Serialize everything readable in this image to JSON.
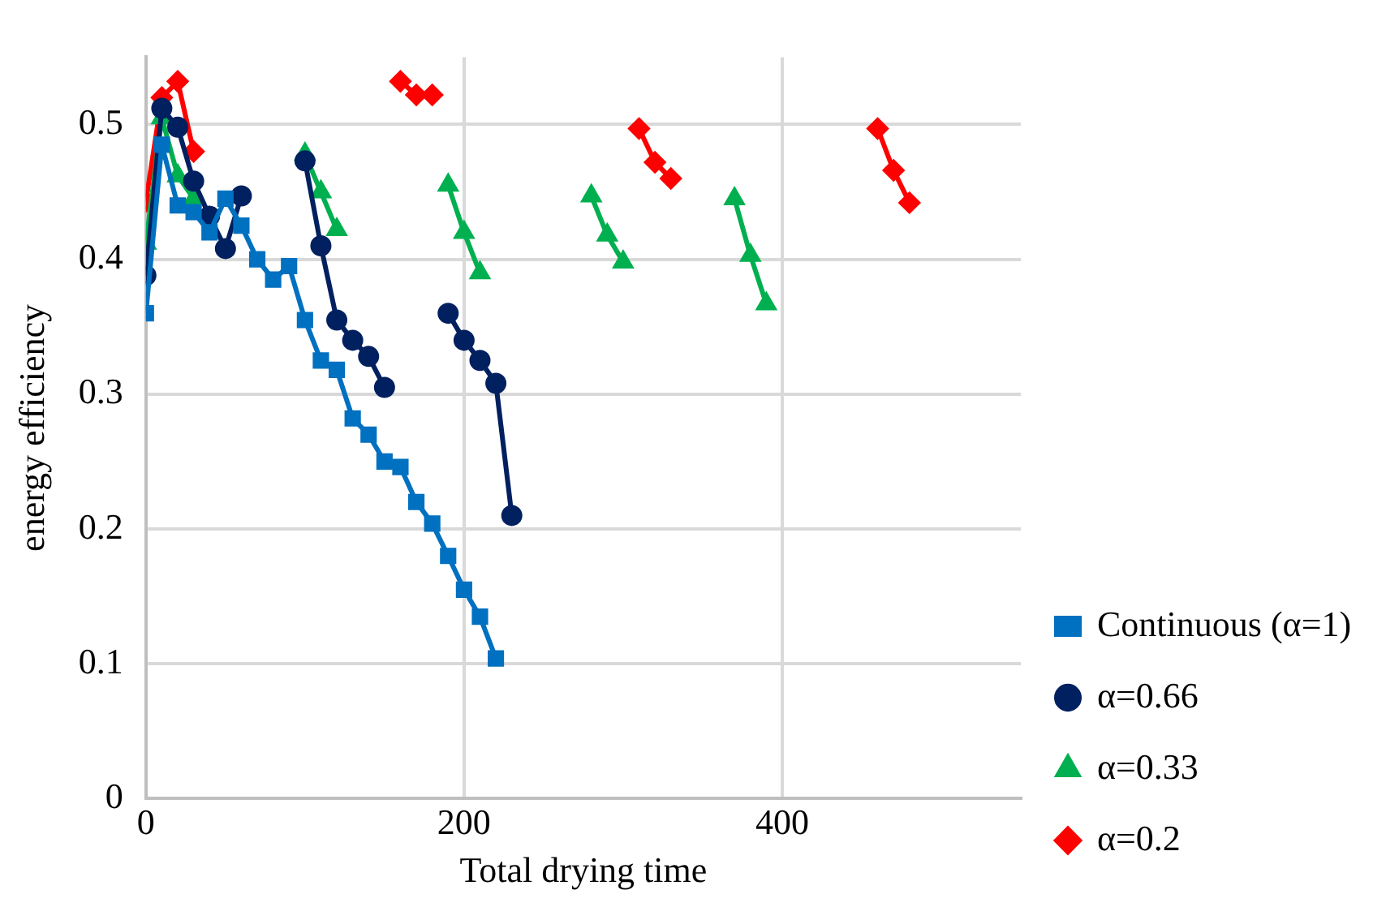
{
  "chart_data": {
    "type": "line",
    "xlabel": "Total drying time",
    "ylabel": "energy efficiency",
    "xlim": [
      0,
      550
    ],
    "xticks": [
      0,
      200,
      400
    ],
    "ylim": [
      0,
      0.55
    ],
    "yticks": [
      0,
      0.1,
      0.2,
      0.3,
      0.4,
      0.5
    ],
    "grid": true,
    "legend": "right",
    "line_style": "solid",
    "series": [
      {
        "name": "Continuous (α=1)",
        "color": "#0070c0",
        "marker": "square",
        "x": [
          0,
          10,
          20,
          30,
          40,
          50,
          60,
          70,
          80,
          90,
          100,
          110,
          120,
          130,
          140,
          150,
          160,
          170,
          180,
          190,
          200,
          210,
          220
        ],
        "values": [
          0.36,
          0.485,
          0.44,
          0.435,
          0.42,
          0.445,
          0.425,
          0.4,
          0.385,
          0.395,
          0.355,
          0.325,
          0.318,
          0.282,
          0.27,
          0.25,
          0.246,
          0.22,
          0.204,
          0.18,
          0.155,
          0.135,
          0.104
        ]
      },
      {
        "name": "α=0.66",
        "color": "#002060",
        "marker": "circle",
        "x": [
          0,
          10,
          20,
          30,
          40,
          50,
          60,
          80,
          100,
          110,
          120,
          130,
          140,
          150,
          170,
          190,
          200,
          210,
          220,
          230
        ],
        "values": [
          0.388,
          0.512,
          0.498,
          0.458,
          0.432,
          0.408,
          0.447,
          null,
          0.473,
          0.41,
          0.355,
          0.34,
          0.328,
          0.305,
          null,
          0.36,
          0.34,
          0.325,
          0.308,
          0.21
        ]
      },
      {
        "name": "α=0.33",
        "color": "#00b050",
        "marker": "triangle",
        "x": [
          0,
          10,
          20,
          30,
          60,
          100,
          110,
          120,
          150,
          190,
          200,
          210,
          250,
          280,
          290,
          300,
          340,
          370,
          380,
          390
        ],
        "values": [
          0.412,
          0.505,
          0.462,
          0.445,
          null,
          0.478,
          0.45,
          0.422,
          null,
          0.455,
          0.42,
          0.39,
          null,
          0.447,
          0.418,
          0.398,
          null,
          0.445,
          0.403,
          0.367
        ]
      },
      {
        "name": "α=0.2",
        "color": "#ff0000",
        "marker": "diamond",
        "x": [
          0,
          10,
          20,
          30,
          100,
          160,
          170,
          180,
          250,
          310,
          320,
          330,
          400,
          460,
          470,
          480
        ],
        "values": [
          0.443,
          0.52,
          0.532,
          0.48,
          null,
          0.532,
          0.522,
          0.522,
          null,
          0.497,
          0.472,
          0.46,
          null,
          0.497,
          0.466,
          0.442
        ]
      }
    ]
  }
}
